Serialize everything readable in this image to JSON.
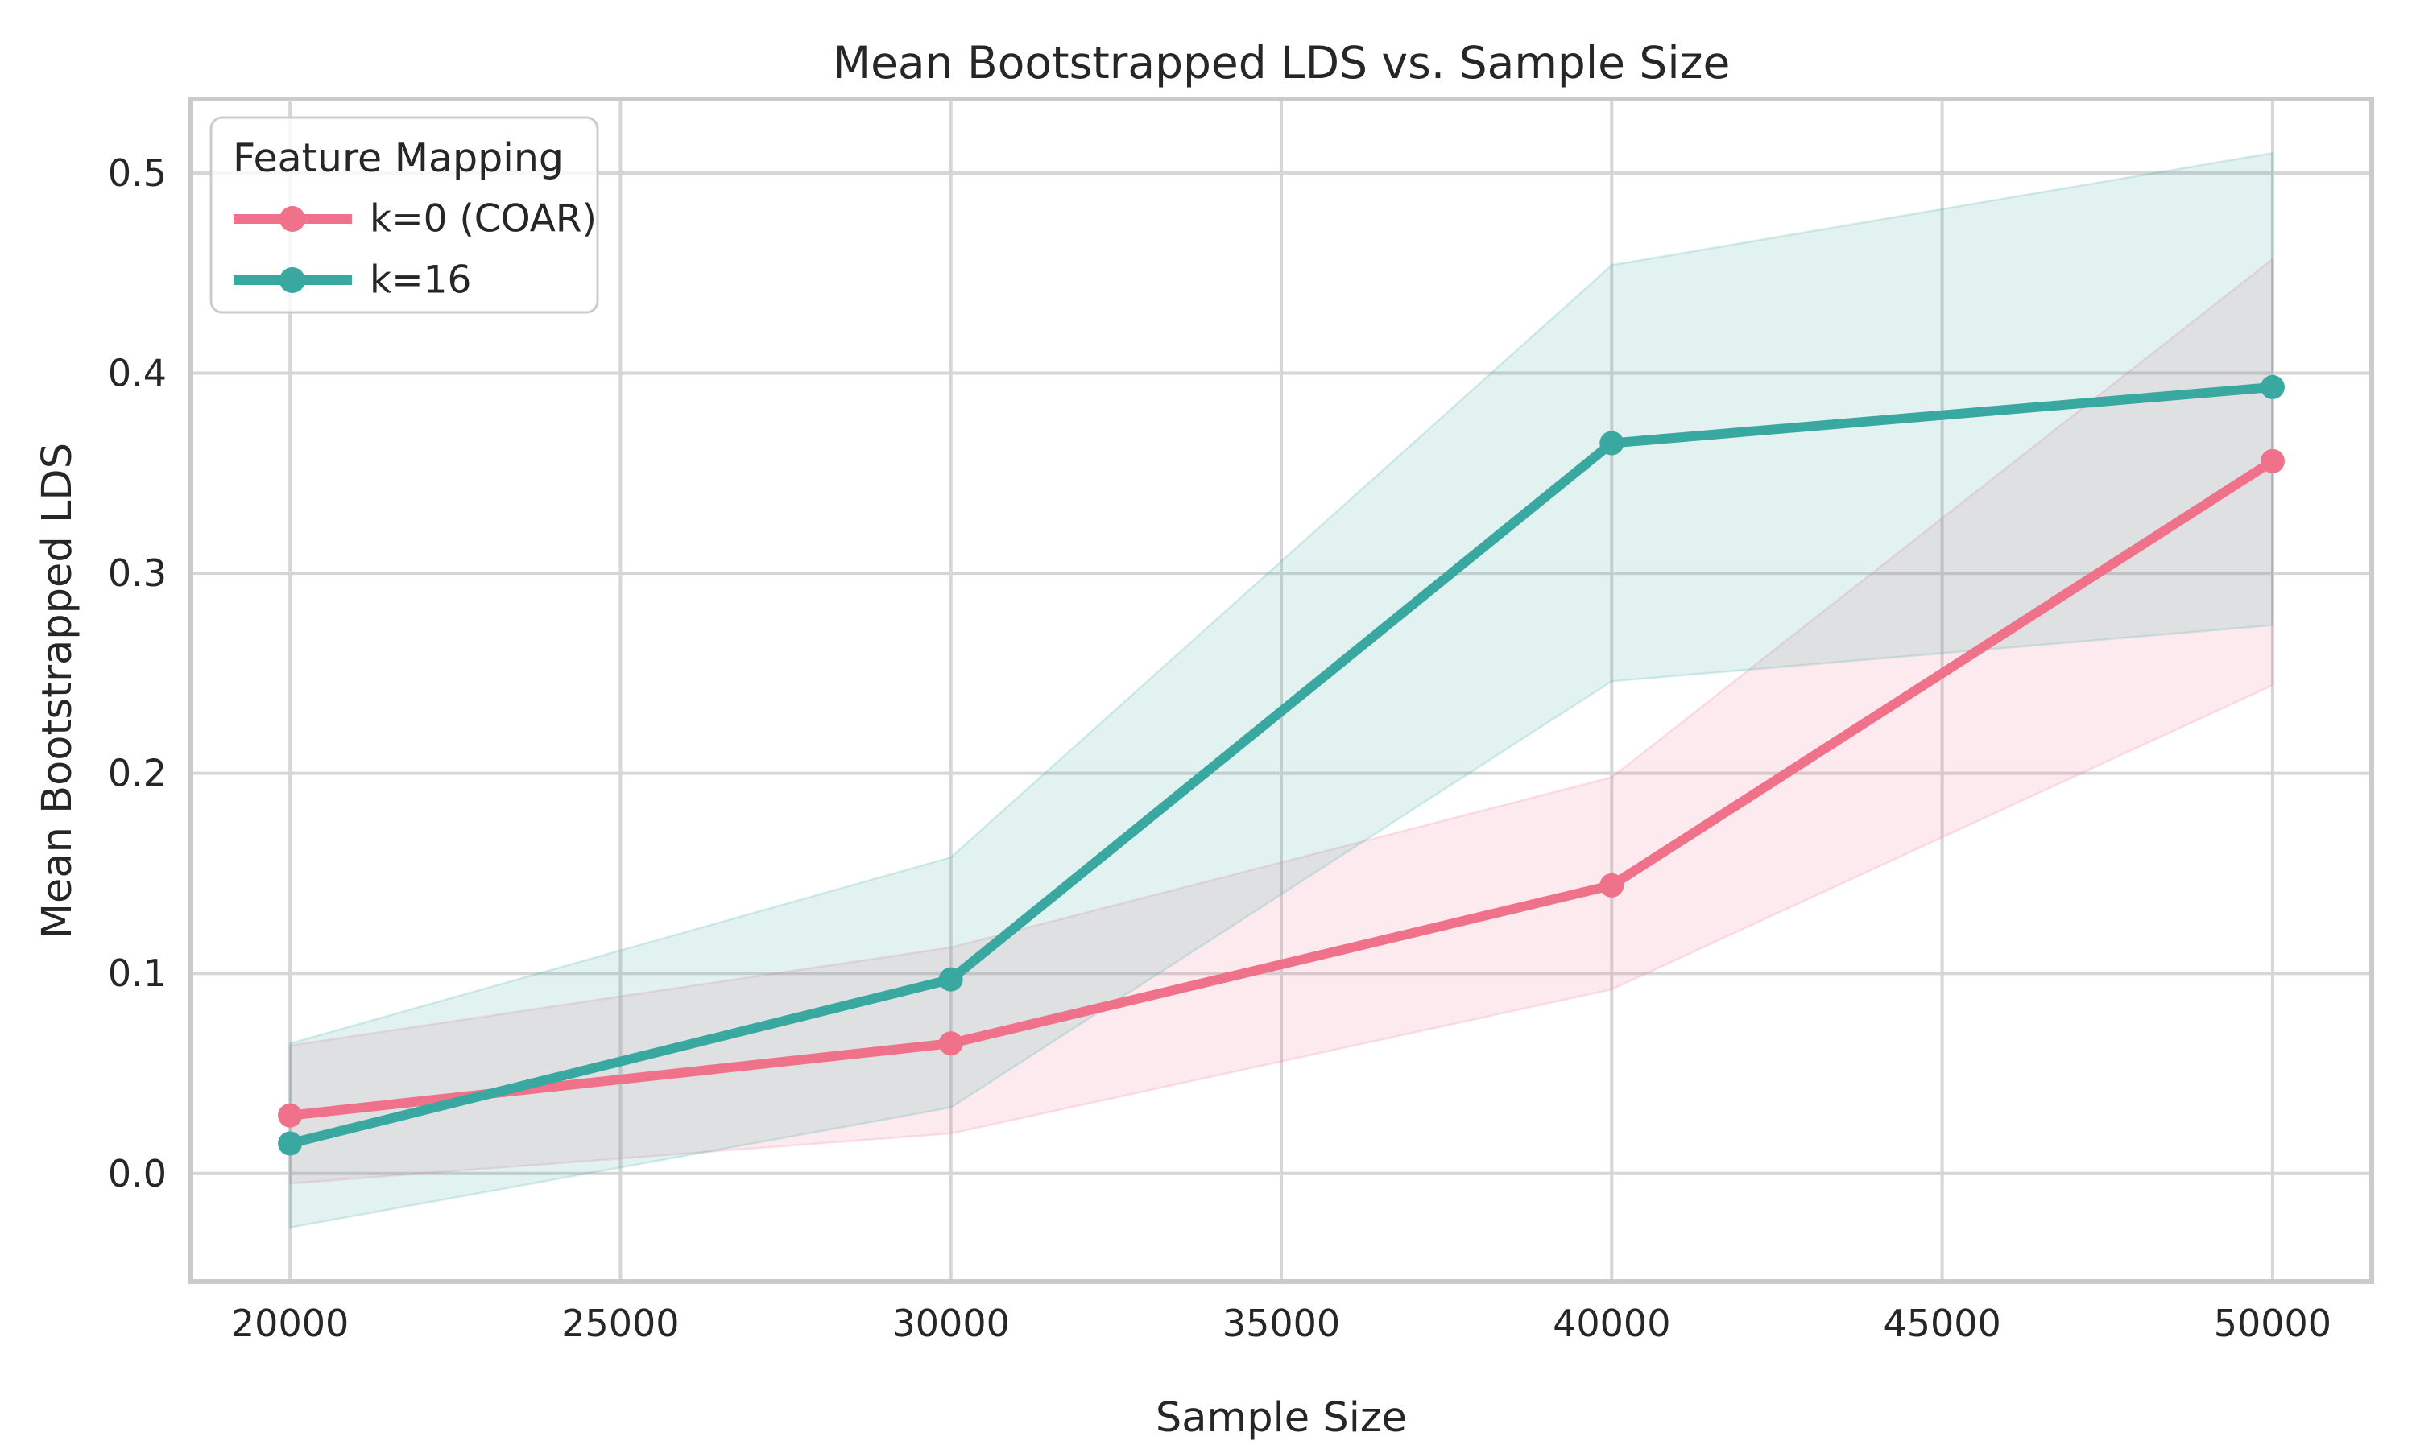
{
  "chart_data": {
    "type": "line",
    "title": "Mean Bootstrapped LDS vs. Sample Size",
    "xlabel": "Sample Size",
    "ylabel": "Mean Bootstrapped LDS",
    "x": [
      20000,
      30000,
      40000,
      50000
    ],
    "series": [
      {
        "name": "k=0 (COAR)",
        "color": "#f0718a",
        "values": [
          0.029,
          0.065,
          0.144,
          0.356
        ],
        "band_lower": [
          -0.005,
          0.02,
          0.092,
          0.244
        ],
        "band_upper": [
          0.064,
          0.113,
          0.198,
          0.457
        ]
      },
      {
        "name": "k=16",
        "color": "#38a8a0",
        "values": [
          0.015,
          0.097,
          0.365,
          0.393
        ],
        "band_lower": [
          -0.027,
          0.033,
          0.246,
          0.274
        ],
        "band_upper": [
          0.065,
          0.158,
          0.454,
          0.51
        ]
      }
    ],
    "band_opacity": 0.15,
    "xticks": {
      "values": [
        20000,
        25000,
        30000,
        35000,
        40000,
        45000,
        50000
      ],
      "labels": [
        "20000",
        "25000",
        "30000",
        "35000",
        "40000",
        "45000",
        "50000"
      ]
    },
    "yticks": {
      "values": [
        0.0,
        0.1,
        0.2,
        0.3,
        0.4,
        0.5
      ],
      "labels": [
        "0.0",
        "0.1",
        "0.2",
        "0.3",
        "0.4",
        "0.5"
      ]
    },
    "xlim": [
      18500,
      51500
    ],
    "ylim": [
      -0.054,
      0.537
    ],
    "grid": true,
    "legend": {
      "title": "Feature Mapping",
      "position": "upper left"
    },
    "colors": {
      "grid": "#d6d6d6",
      "spine": "#cbcbcb",
      "text": "#262626",
      "background": "#ffffff",
      "legend_border": "#cccccc"
    }
  }
}
